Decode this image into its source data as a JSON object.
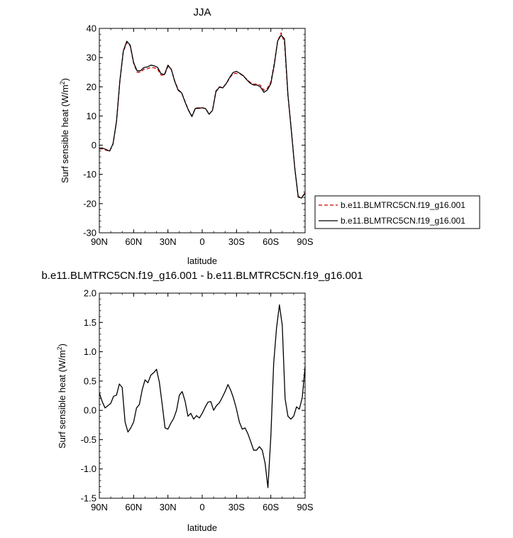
{
  "chart_data": [
    {
      "type": "line",
      "title": "JJA",
      "xlabel": "latitude",
      "ylabel": "Surf sensible heat (W/m",
      "ylabel_sup": "2",
      "ylabel_close": ")",
      "xlim": [
        90,
        -90
      ],
      "ylim": [
        -30,
        40
      ],
      "xticks": [
        90,
        60,
        30,
        0,
        -30,
        -60,
        -90
      ],
      "xtick_labels": [
        "90N",
        "60N",
        "30N",
        "0",
        "30S",
        "60S",
        "90S"
      ],
      "yticks": [
        -30,
        -20,
        -10,
        0,
        10,
        20,
        30,
        40
      ],
      "ytick_labels": [
        "-30",
        "-20",
        "-10",
        "0",
        "10",
        "20",
        "30",
        "40"
      ],
      "grid": false,
      "legend": "right",
      "series": [
        {
          "name": "b.e11.BLMTRC5CN.f19_g16.001",
          "color": "#cc0000",
          "dash": "dashed",
          "x": [
            90,
            87,
            84,
            81,
            78,
            75,
            72,
            69,
            66,
            63,
            60,
            57,
            54,
            51,
            48,
            45,
            42,
            39,
            36,
            33,
            30,
            27,
            24,
            21,
            18,
            15,
            12,
            9,
            6,
            3,
            0,
            -3,
            -6,
            -9,
            -12,
            -15,
            -18,
            -21,
            -24,
            -27,
            -30,
            -33,
            -36,
            -39,
            -42,
            -45,
            -48,
            -51,
            -54,
            -57,
            -60,
            -63,
            -66,
            -69,
            -72,
            -75,
            -78,
            -81,
            -84,
            -87,
            -90
          ],
          "y": [
            -1.3,
            -1.3,
            -1.7,
            -2.1,
            0.3,
            8,
            22,
            32,
            35.2,
            34,
            28,
            25,
            25,
            26,
            26.2,
            26.6,
            26.5,
            26,
            24,
            24,
            27,
            26,
            22,
            19,
            18,
            15,
            12,
            10,
            12.7,
            12.8,
            12.8,
            12.6,
            10.6,
            12,
            18.6,
            20,
            19.8,
            21,
            23,
            24.5,
            24.6,
            24.5,
            23.6,
            22.6,
            21.5,
            20.9,
            21,
            20.5,
            18.8,
            19.5,
            21.6,
            28,
            35.6,
            38.5,
            35,
            17,
            5,
            -8,
            -17.5,
            -18,
            -16
          ]
        },
        {
          "name": "b.e11.BLMTRC5CN.f19_g16.001",
          "color": "#000000",
          "dash": "solid",
          "x": [
            90,
            87,
            84,
            81,
            78,
            75,
            72,
            69,
            66,
            63,
            60,
            57,
            54,
            51,
            48,
            45,
            42,
            39,
            36,
            33,
            30,
            27,
            24,
            21,
            18,
            15,
            12,
            9,
            6,
            3,
            0,
            -3,
            -6,
            -9,
            -12,
            -15,
            -18,
            -21,
            -24,
            -27,
            -30,
            -33,
            -36,
            -39,
            -42,
            -45,
            -48,
            -51,
            -54,
            -57,
            -60,
            -63,
            -66,
            -69,
            -72,
            -75,
            -78,
            -81,
            -84,
            -87,
            -90
          ],
          "y": [
            -1,
            -1,
            -1.5,
            -2,
            0.5,
            8.2,
            22.2,
            32.3,
            35.6,
            34.3,
            28.3,
            25.5,
            25.5,
            26.6,
            26.8,
            27.4,
            27.2,
            26.6,
            24.5,
            24.2,
            27.4,
            25.9,
            21.8,
            18.8,
            17.9,
            14.8,
            11.9,
            9.8,
            12.6,
            12.6,
            12.8,
            12.5,
            10.6,
            11.9,
            18.3,
            19.9,
            19.6,
            21.1,
            23.2,
            24.9,
            25.3,
            24.6,
            23.8,
            22.4,
            21.2,
            20.6,
            20.6,
            19.9,
            18.1,
            18.9,
            21.1,
            27.4,
            35.7,
            37.7,
            36.4,
            17.3,
            4.7,
            -8,
            -17.8,
            -18.1,
            -16.3
          ]
        }
      ]
    },
    {
      "type": "line",
      "title": "b.e11.BLMTRC5CN.f19_g16.001 - b.e11.BLMTRC5CN.f19_g16.001",
      "xlabel": "latitude",
      "ylabel": "Surf sensible heat (W/m",
      "ylabel_sup": "2",
      "ylabel_close": ")",
      "xlim": [
        90,
        -90
      ],
      "ylim": [
        -1.5,
        2.0
      ],
      "xticks": [
        90,
        60,
        30,
        0,
        -30,
        -60,
        -90
      ],
      "xtick_labels": [
        "90N",
        "60N",
        "30N",
        "0",
        "30S",
        "60S",
        "90S"
      ],
      "yticks": [
        -1.5,
        -1.0,
        -0.5,
        0.0,
        0.5,
        1.0,
        1.5,
        2.0
      ],
      "ytick_labels": [
        "-1.5",
        "-1.0",
        "-0.5",
        "0.0",
        "0.5",
        "1.0",
        "1.5",
        "2.0"
      ],
      "grid": false,
      "series": [
        {
          "color": "#000000",
          "dash": "solid",
          "x": [
            90,
            87.5,
            85,
            82.5,
            80,
            77.5,
            75,
            72.5,
            70,
            67.5,
            65,
            62.5,
            60,
            57.5,
            55,
            52.5,
            50,
            47.5,
            45,
            42.5,
            40,
            37.5,
            35,
            32.5,
            30,
            27.5,
            25,
            22.5,
            20,
            17.5,
            15,
            12.5,
            10,
            7.5,
            5,
            2.5,
            0,
            -2.5,
            -5,
            -7.5,
            -10,
            -12.5,
            -15,
            -17.5,
            -20,
            -22.5,
            -25,
            -27.5,
            -30,
            -32.5,
            -35,
            -37.5,
            -40,
            -42.5,
            -45,
            -47.5,
            -50,
            -52.5,
            -55,
            -57.5,
            -60,
            -62.5,
            -65,
            -67.5,
            -70,
            -72.5,
            -75,
            -77.5,
            -80,
            -82.5,
            -85,
            -87.5,
            -90
          ],
          "y": [
            0.3,
            0.15,
            0.04,
            0.08,
            0.12,
            0.24,
            0.26,
            0.45,
            0.39,
            -0.2,
            -0.37,
            -0.3,
            -0.2,
            0.04,
            0.1,
            0.35,
            0.52,
            0.47,
            0.6,
            0.64,
            0.7,
            0.48,
            0.1,
            -0.3,
            -0.32,
            -0.22,
            -0.14,
            0,
            0.26,
            0.32,
            0.16,
            -0.1,
            -0.05,
            -0.15,
            -0.09,
            -0.13,
            -0.05,
            0.05,
            0.14,
            0.15,
            0.0,
            0.08,
            0.13,
            0.22,
            0.32,
            0.44,
            0.34,
            0.2,
            0.02,
            -0.2,
            -0.32,
            -0.3,
            -0.4,
            -0.54,
            -0.68,
            -0.68,
            -0.62,
            -0.68,
            -0.9,
            -1.32,
            -0.45,
            0.8,
            1.4,
            1.8,
            1.45,
            0.2,
            -0.1,
            -0.15,
            -0.1,
            0.06,
            0.02,
            0.22,
            0.75
          ]
        }
      ]
    }
  ]
}
